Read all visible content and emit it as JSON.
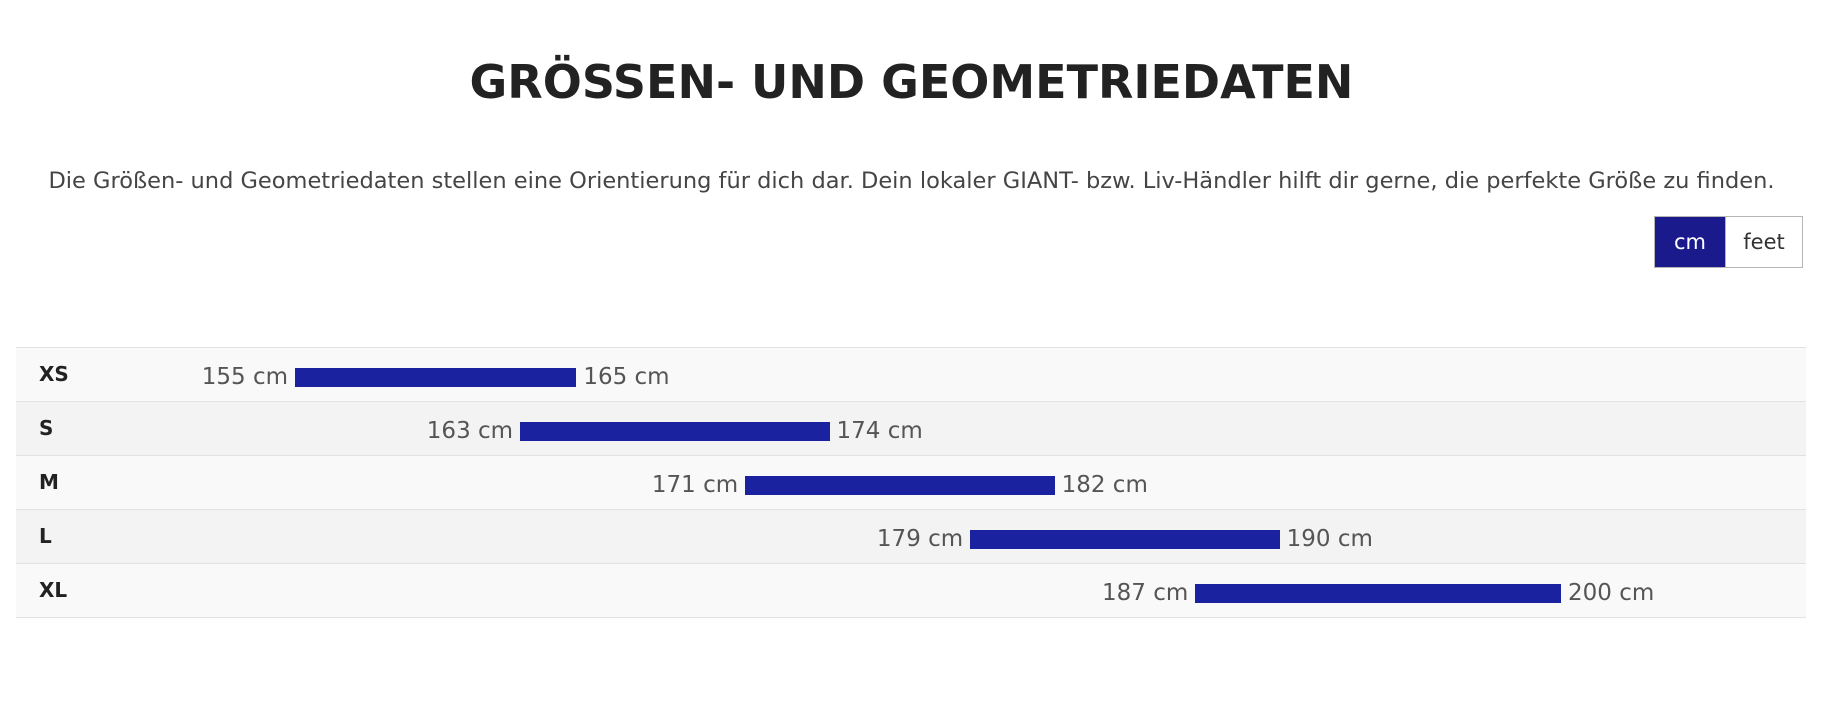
{
  "header": {
    "title": "GRÖSSEN- UND GEOMETRIEDATEN",
    "intro": "Die Größen- und Geometriedaten stellen eine Orientierung für dich dar. Dein lokaler GIANT- bzw. Liv-Händler hilft dir gerne, die perfekte Größe zu finden."
  },
  "unit_toggle": {
    "options": [
      {
        "label": "cm",
        "selected": true
      },
      {
        "label": "feet",
        "selected": false
      }
    ]
  },
  "colors": {
    "accent": "#1a1a8c",
    "bar": "#1a22a0"
  },
  "sizes": [
    {
      "size": "XS",
      "min": 155,
      "max": 165,
      "min_label": "155 cm",
      "max_label": "165 cm"
    },
    {
      "size": "S",
      "min": 163,
      "max": 174,
      "min_label": "163 cm",
      "max_label": "174 cm"
    },
    {
      "size": "M",
      "min": 171,
      "max": 182,
      "min_label": "171 cm",
      "max_label": "182 cm"
    },
    {
      "size": "L",
      "min": 179,
      "max": 190,
      "min_label": "179 cm",
      "max_label": "190 cm"
    },
    {
      "size": "XL",
      "min": 187,
      "max": 200,
      "min_label": "187 cm",
      "max_label": "200 cm"
    }
  ]
}
